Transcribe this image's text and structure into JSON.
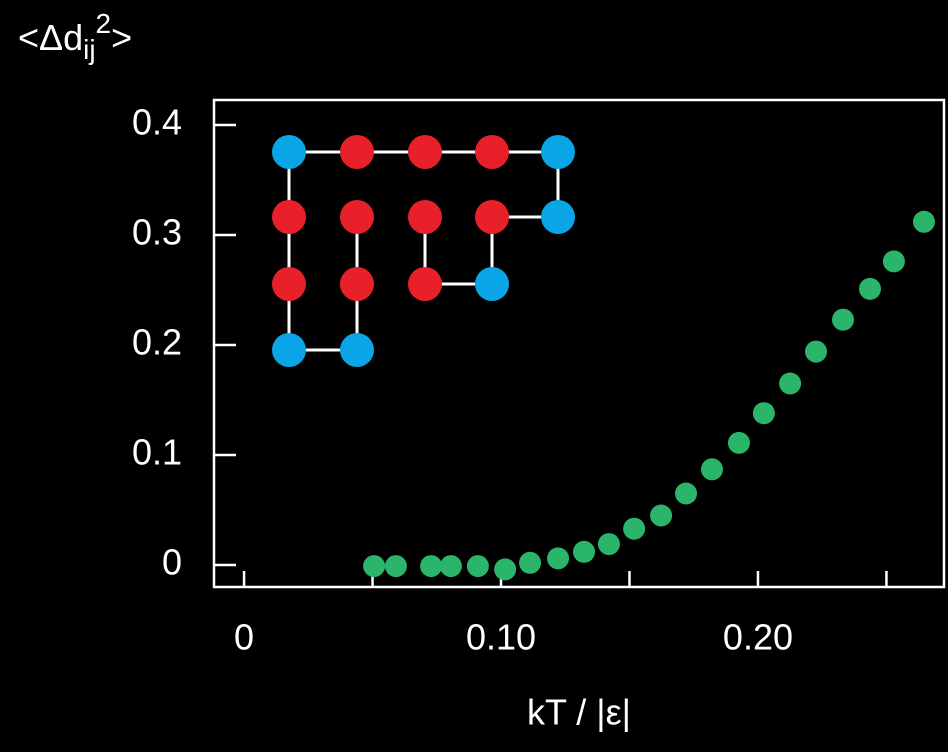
{
  "chart_data": {
    "type": "scatter",
    "y_label": [
      "<Δd",
      "ij",
      "2",
      ">"
    ],
    "x_label": "kT / |ε|",
    "color": "#2ab56a",
    "x": [
      0.0506,
      0.0591,
      0.0728,
      0.0805,
      0.091,
      0.1016,
      0.1113,
      0.1222,
      0.1323,
      0.142,
      0.1518,
      0.1623,
      0.172,
      0.1821,
      0.1926,
      0.2023,
      0.2125,
      0.2226,
      0.2331,
      0.2436,
      0.2529,
      0.2646
    ],
    "values": [
      -0.001,
      -0.001,
      -0.001,
      -0.001,
      -0.001,
      -0.004,
      0.002,
      0.006,
      0.012,
      0.019,
      0.033,
      0.045,
      0.065,
      0.087,
      0.111,
      0.138,
      0.165,
      0.194,
      0.223,
      0.251,
      0.276,
      0.312
    ],
    "xlim": [
      -0.0117,
      0.2724
    ],
    "ylim": [
      -0.02,
      0.4227
    ],
    "xticks": [
      0,
      {
        "value": 0.05,
        "label": null
      },
      {
        "value": 0.1,
        "label": "0.10"
      },
      {
        "value": 0.15,
        "label": null
      },
      {
        "value": 0.2,
        "label": "0.20"
      },
      {
        "value": 0.25,
        "label": null
      }
    ],
    "yticks": [
      0,
      0.1,
      0.2,
      0.3,
      0.4
    ]
  }
}
